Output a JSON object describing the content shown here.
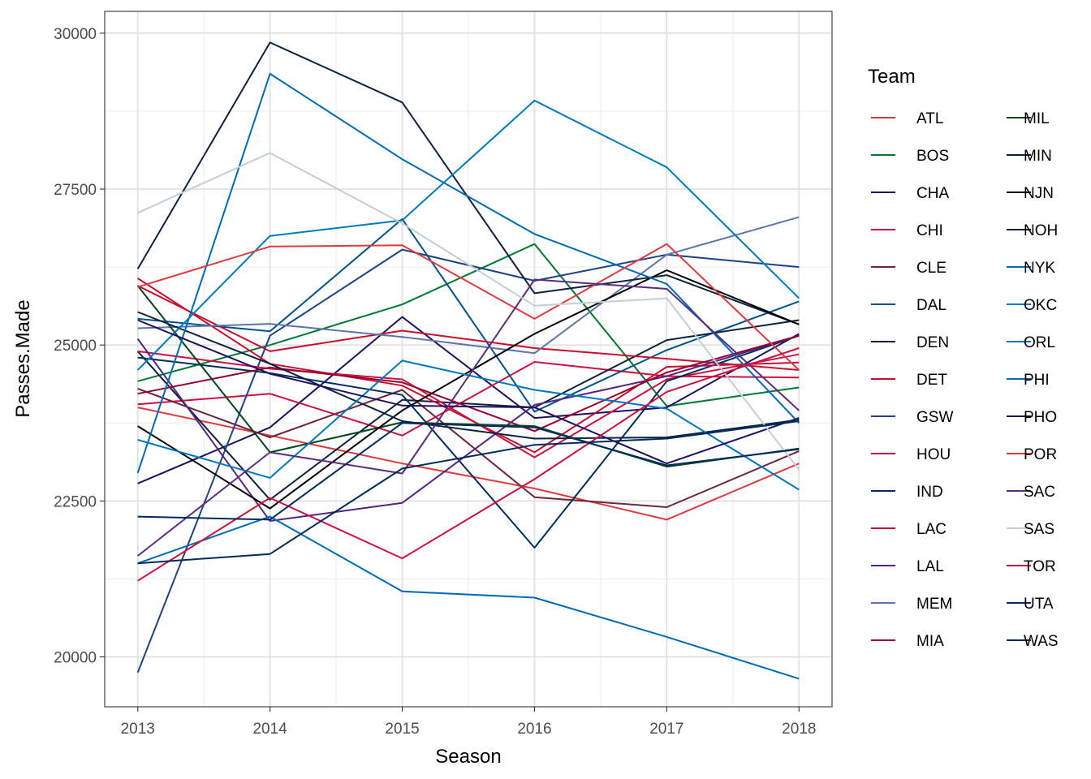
{
  "chart_data": {
    "type": "line",
    "xlabel": "Season",
    "ylabel": "Passes.Made",
    "x": [
      2013,
      2014,
      2015,
      2016,
      2017,
      2018
    ],
    "xlim": [
      2012.75,
      2018.25
    ],
    "ylim": [
      19200,
      30350
    ],
    "yticks": [
      20000,
      22500,
      25000,
      27500,
      30000
    ],
    "ytick_labels": [
      "20000",
      "22500",
      "25000",
      "27500",
      "30000"
    ],
    "xtick_labels": [
      "2013",
      "2014",
      "2015",
      "2016",
      "2017",
      "2018"
    ],
    "grid": true,
    "legend": {
      "title": "Team",
      "position": "right",
      "columns": 2
    },
    "series": [
      {
        "name": "ATL",
        "color": "#E03A3E",
        "values": [
          24000,
          23550,
          23100,
          22700,
          22200,
          23100
        ]
      },
      {
        "name": "BOS",
        "color": "#007A33",
        "values": [
          24420,
          25000,
          25650,
          26620,
          24020,
          24320
        ]
      },
      {
        "name": "CHA",
        "color": "#1D1160",
        "values": [
          22780,
          23680,
          25450,
          23830,
          24000,
          25180
        ]
      },
      {
        "name": "CHI",
        "color": "#CE1141",
        "values": [
          24050,
          24220,
          23550,
          24730,
          24500,
          24480
        ]
      },
      {
        "name": "CLE",
        "color": "#6F263D",
        "values": [
          24300,
          23520,
          24280,
          22560,
          22400,
          23300
        ]
      },
      {
        "name": "DAL",
        "color": "#00538C",
        "values": [
          25420,
          25220,
          27020,
          23930,
          24920,
          25700
        ]
      },
      {
        "name": "DEN",
        "color": "#0E2240",
        "values": [
          24900,
          22520,
          24120,
          24000,
          25080,
          25400
        ]
      },
      {
        "name": "DET",
        "color": "#C8102E",
        "values": [
          25950,
          24900,
          25230,
          24950,
          24780,
          24600
        ]
      },
      {
        "name": "GSW",
        "color": "#1D428A",
        "values": [
          19750,
          25150,
          26530,
          26030,
          26450,
          26250
        ]
      },
      {
        "name": "HOU",
        "color": "#CE1141",
        "values": [
          24900,
          24620,
          24450,
          23200,
          24450,
          24850
        ]
      },
      {
        "name": "IND",
        "color": "#002D62",
        "values": [
          24800,
          24550,
          24200,
          21750,
          24420,
          25150
        ]
      },
      {
        "name": "LAC",
        "color": "#C8102E",
        "values": [
          26070,
          24700,
          24350,
          23280,
          24650,
          24720
        ]
      },
      {
        "name": "LAL",
        "color": "#552583",
        "values": [
          25100,
          22180,
          22470,
          24040,
          24500,
          25150
        ]
      },
      {
        "name": "MEM",
        "color": "#5D76A9",
        "values": [
          25270,
          25340,
          25130,
          24870,
          26450,
          27050
        ]
      },
      {
        "name": "MIA",
        "color": "#98002E",
        "values": [
          24220,
          24640,
          24400,
          23620,
          24560,
          25150
        ]
      },
      {
        "name": "MIL",
        "color": "#00471B",
        "values": [
          25950,
          23280,
          23760,
          23700,
          23050,
          23340
        ]
      },
      {
        "name": "MIN",
        "color": "#0C2340",
        "values": [
          26220,
          29850,
          28890,
          25830,
          26120,
          25330
        ]
      },
      {
        "name": "NJN",
        "color": "#000000",
        "values": [
          23700,
          22380,
          23950,
          25180,
          26200,
          25330
        ]
      },
      {
        "name": "NOH",
        "color": "#0C2340",
        "values": [
          25530,
          24700,
          23780,
          23500,
          23520,
          23800
        ]
      },
      {
        "name": "NYK",
        "color": "#006BB6",
        "values": [
          22950,
          29350,
          27980,
          26780,
          25980,
          23750
        ]
      },
      {
        "name": "OKC",
        "color": "#007AC1",
        "values": [
          24600,
          26750,
          27000,
          28920,
          27850,
          25750
        ]
      },
      {
        "name": "ORL",
        "color": "#0077C0",
        "values": [
          23480,
          22870,
          24750,
          24280,
          23980,
          22680
        ]
      },
      {
        "name": "PHI",
        "color": "#006BB6",
        "values": [
          21500,
          22250,
          21050,
          20950,
          20320,
          19650
        ]
      },
      {
        "name": "PHO",
        "color": "#1D1160",
        "values": [
          25400,
          24540,
          24030,
          24000,
          23100,
          23830
        ]
      },
      {
        "name": "POR",
        "color": "#E03A3E",
        "values": [
          25930,
          26580,
          26600,
          25420,
          26620,
          24600
        ]
      },
      {
        "name": "SAC",
        "color": "#5A2D81",
        "values": [
          21620,
          23280,
          22940,
          26050,
          25900,
          23950
        ]
      },
      {
        "name": "SAS",
        "color": "#C4CED4",
        "values": [
          27120,
          28080,
          26950,
          25630,
          25750,
          23000
        ]
      },
      {
        "name": "TOR",
        "color": "#CE1141",
        "values": [
          21220,
          22550,
          21580,
          22850,
          24250,
          24950
        ]
      },
      {
        "name": "UTA",
        "color": "#002B5C",
        "values": [
          22250,
          22200,
          23750,
          23680,
          23070,
          23330
        ]
      },
      {
        "name": "WAS",
        "color": "#002B5C",
        "values": [
          21500,
          21650,
          23020,
          23400,
          23500,
          23780
        ]
      }
    ]
  }
}
